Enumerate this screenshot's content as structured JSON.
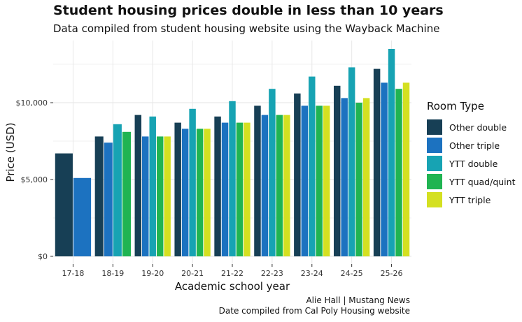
{
  "chart_data": {
    "type": "bar",
    "title": "Student housing prices double in less than 10 years",
    "subtitle": "Data compiled from student housing website using the Wayback Machine",
    "xlabel": "Academic school year",
    "ylabel": "Price (USD)",
    "ylim": [
      0,
      14000
    ],
    "yticks": [
      0,
      5000,
      10000
    ],
    "ytick_labels": [
      "$0",
      "$5,000",
      "$10,000"
    ],
    "grid": true,
    "legend_title": "Room Type",
    "legend_position": "right",
    "categories": [
      "17-18",
      "18-19",
      "19-20",
      "20-21",
      "21-22",
      "22-23",
      "23-24",
      "24-25",
      "25-26"
    ],
    "series": [
      {
        "name": "Other double",
        "color": "#173f55",
        "values": [
          6700,
          7800,
          9200,
          8700,
          9100,
          9800,
          10600,
          11100,
          12200
        ]
      },
      {
        "name": "Other triple",
        "color": "#1c72c0",
        "values": [
          5100,
          7400,
          7800,
          8300,
          8700,
          9200,
          9800,
          10300,
          11300
        ]
      },
      {
        "name": "YTT double",
        "color": "#17a3b3",
        "values": [
          null,
          8600,
          9100,
          9600,
          10100,
          10900,
          11700,
          12300,
          13500
        ]
      },
      {
        "name": "YTT quad/quint",
        "color": "#20b452",
        "values": [
          null,
          8100,
          7800,
          8300,
          8700,
          9200,
          9800,
          10000,
          10900
        ]
      },
      {
        "name": "YTT triple",
        "color": "#d4e021",
        "values": [
          null,
          null,
          7800,
          8300,
          8700,
          9200,
          9800,
          10300,
          11300
        ]
      }
    ]
  },
  "caption": {
    "line1": "Alie Hall | Mustang News",
    "line2": "Date compiled from Cal Poly Housing website"
  }
}
